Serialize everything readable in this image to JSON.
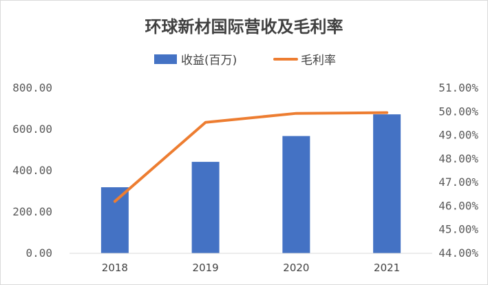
{
  "chart_data": {
    "type": "bar",
    "title": "环球新材国际营收及毛利率",
    "categories": [
      "2018",
      "2019",
      "2020",
      "2021"
    ],
    "series": [
      {
        "name": "收益(百万)",
        "type": "bar",
        "axis": "left",
        "color": "#4472C4",
        "values": [
          320,
          443,
          568,
          673
        ]
      },
      {
        "name": "毛利率",
        "type": "line",
        "axis": "right",
        "color": "#ED7D31",
        "values": [
          46.2,
          49.55,
          49.93,
          49.96
        ]
      }
    ],
    "y_left": {
      "ylim": [
        0,
        800
      ],
      "ticks": [
        "0.00",
        "200.00",
        "400.00",
        "600.00",
        "800.00"
      ]
    },
    "y_right": {
      "ylim": [
        44,
        51
      ],
      "ticks": [
        "44.00%",
        "45.00%",
        "46.00%",
        "47.00%",
        "48.00%",
        "49.00%",
        "50.00%",
        "51.00%"
      ]
    },
    "legend": {
      "position": "top"
    },
    "grid": false
  }
}
